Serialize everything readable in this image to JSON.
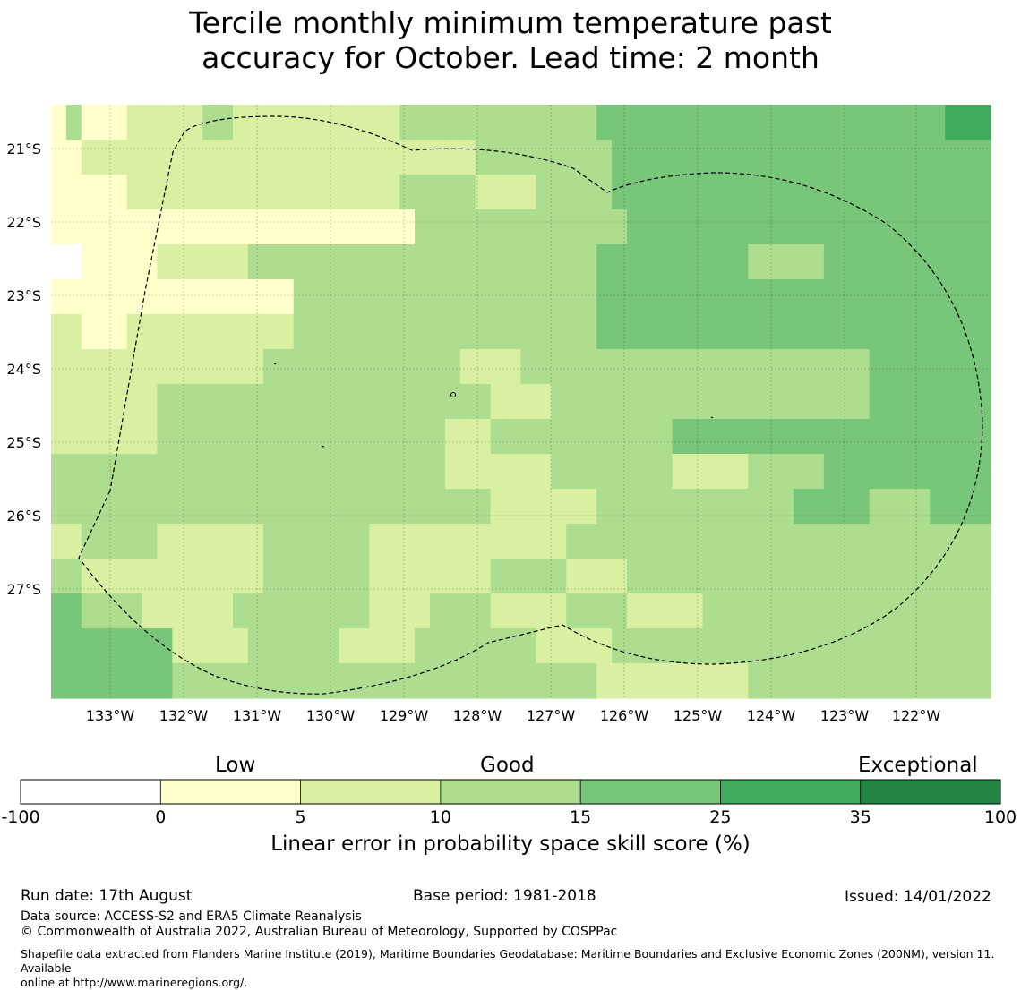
{
  "title": {
    "line1": "Tercile monthly minimum temperature past",
    "line2": "accuracy for October. Lead time: 2 month"
  },
  "map": {
    "lon_labels": [
      "133°W",
      "132°W",
      "131°W",
      "130°W",
      "129°W",
      "128°W",
      "127°W",
      "126°W",
      "125°W",
      "124°W",
      "123°W",
      "122°W"
    ],
    "lat_labels": [
      "21°S",
      "22°S",
      "23°S",
      "24°S",
      "25°S",
      "26°S",
      "27°S"
    ],
    "grid": [
      [
        0,
        2,
        0,
        0,
        0,
        1,
        1,
        1,
        1,
        1,
        2,
        2,
        1,
        1,
        1,
        1,
        1,
        1,
        1,
        1,
        1,
        1,
        1,
        2,
        2,
        2,
        2,
        2,
        2,
        2,
        2,
        2,
        2,
        2,
        2,
        2,
        3,
        3,
        3,
        3,
        3,
        3,
        3,
        3,
        3,
        3,
        3,
        3,
        3,
        3,
        3,
        3,
        3,
        3,
        3,
        3,
        3,
        3,
        3,
        4,
        4,
        4
      ],
      [
        0,
        0,
        1,
        1,
        1,
        1,
        1,
        1,
        1,
        1,
        1,
        1,
        1,
        1,
        1,
        1,
        1,
        1,
        1,
        1,
        1,
        1,
        1,
        1,
        1,
        1,
        1,
        1,
        2,
        2,
        2,
        2,
        2,
        2,
        2,
        2,
        2,
        3,
        3,
        3,
        3,
        3,
        3,
        3,
        3,
        3,
        3,
        3,
        3,
        3,
        3,
        3,
        3,
        3,
        3,
        3,
        3,
        3,
        3,
        3,
        3,
        3
      ],
      [
        0,
        0,
        0,
        0,
        0,
        1,
        1,
        1,
        1,
        1,
        1,
        1,
        1,
        1,
        1,
        1,
        1,
        1,
        1,
        1,
        1,
        1,
        1,
        2,
        2,
        2,
        2,
        2,
        1,
        1,
        1,
        1,
        2,
        2,
        2,
        2,
        2,
        3,
        3,
        3,
        3,
        3,
        3,
        3,
        3,
        3,
        3,
        3,
        3,
        3,
        3,
        3,
        3,
        3,
        3,
        3,
        3,
        3,
        3,
        3,
        3,
        3
      ],
      [
        0,
        0,
        0,
        0,
        0,
        0,
        0,
        0,
        0,
        0,
        0,
        0,
        0,
        0,
        0,
        0,
        0,
        0,
        0,
        0,
        0,
        0,
        0,
        0,
        2,
        2,
        2,
        2,
        2,
        2,
        2,
        2,
        2,
        2,
        2,
        2,
        2,
        2,
        3,
        3,
        3,
        3,
        3,
        3,
        3,
        3,
        3,
        3,
        3,
        3,
        3,
        3,
        3,
        3,
        3,
        3,
        3,
        3,
        3,
        3,
        3,
        3
      ],
      [
        -1,
        -1,
        0,
        0,
        0,
        0,
        0,
        1,
        1,
        1,
        1,
        1,
        1,
        2,
        2,
        2,
        2,
        2,
        2,
        2,
        2,
        2,
        2,
        2,
        2,
        2,
        2,
        2,
        2,
        2,
        2,
        2,
        2,
        2,
        2,
        2,
        3,
        3,
        3,
        3,
        3,
        3,
        3,
        3,
        3,
        3,
        2,
        2,
        2,
        2,
        2,
        3,
        3,
        3,
        3,
        3,
        3,
        3,
        3,
        3,
        3,
        3
      ],
      [
        0,
        0,
        0,
        0,
        0,
        0,
        0,
        0,
        0,
        0,
        0,
        0,
        0,
        0,
        0,
        0,
        2,
        2,
        2,
        2,
        2,
        2,
        2,
        2,
        2,
        2,
        2,
        2,
        2,
        2,
        2,
        2,
        2,
        2,
        2,
        2,
        3,
        3,
        3,
        3,
        3,
        3,
        3,
        3,
        3,
        3,
        3,
        3,
        3,
        3,
        3,
        3,
        3,
        3,
        3,
        3,
        3,
        3,
        3,
        3,
        3,
        3
      ],
      [
        1,
        1,
        0,
        0,
        0,
        1,
        1,
        1,
        1,
        1,
        1,
        1,
        1,
        1,
        1,
        1,
        2,
        2,
        2,
        2,
        2,
        2,
        2,
        2,
        2,
        2,
        2,
        2,
        2,
        2,
        2,
        2,
        2,
        2,
        2,
        2,
        3,
        3,
        3,
        3,
        3,
        3,
        3,
        3,
        3,
        3,
        3,
        3,
        3,
        3,
        3,
        3,
        3,
        3,
        3,
        3,
        3,
        3,
        3,
        3,
        3,
        3
      ],
      [
        1,
        1,
        1,
        1,
        1,
        1,
        1,
        1,
        1,
        1,
        1,
        1,
        1,
        1,
        2,
        2,
        2,
        2,
        2,
        2,
        2,
        2,
        2,
        2,
        2,
        2,
        2,
        1,
        1,
        1,
        1,
        2,
        2,
        2,
        2,
        2,
        2,
        2,
        2,
        2,
        2,
        2,
        2,
        2,
        2,
        2,
        2,
        2,
        2,
        2,
        2,
        2,
        2,
        2,
        3,
        3,
        3,
        3,
        3,
        3,
        3,
        3
      ],
      [
        1,
        1,
        1,
        1,
        1,
        1,
        1,
        2,
        2,
        2,
        2,
        2,
        2,
        2,
        2,
        2,
        2,
        2,
        2,
        2,
        2,
        2,
        2,
        2,
        2,
        2,
        2,
        2,
        2,
        1,
        1,
        1,
        1,
        2,
        2,
        2,
        2,
        2,
        2,
        2,
        2,
        2,
        2,
        2,
        2,
        2,
        2,
        2,
        2,
        2,
        2,
        2,
        2,
        2,
        3,
        3,
        3,
        3,
        3,
        3,
        3,
        3
      ],
      [
        1,
        1,
        1,
        1,
        1,
        1,
        1,
        2,
        2,
        2,
        2,
        2,
        2,
        2,
        2,
        2,
        2,
        2,
        2,
        2,
        2,
        2,
        2,
        2,
        2,
        2,
        1,
        1,
        1,
        2,
        2,
        2,
        2,
        2,
        2,
        2,
        2,
        2,
        2,
        2,
        2,
        3,
        3,
        3,
        3,
        3,
        3,
        3,
        3,
        3,
        3,
        3,
        3,
        3,
        3,
        3,
        3,
        3,
        3,
        3,
        3,
        3
      ],
      [
        2,
        2,
        2,
        2,
        2,
        2,
        2,
        2,
        2,
        2,
        2,
        2,
        2,
        2,
        2,
        2,
        2,
        2,
        2,
        2,
        2,
        2,
        2,
        2,
        2,
        2,
        1,
        1,
        1,
        1,
        1,
        1,
        1,
        2,
        2,
        2,
        2,
        2,
        2,
        2,
        2,
        1,
        1,
        1,
        1,
        1,
        2,
        2,
        2,
        2,
        2,
        3,
        3,
        3,
        3,
        3,
        3,
        3,
        3,
        3,
        3,
        3
      ],
      [
        2,
        2,
        2,
        2,
        2,
        2,
        2,
        2,
        2,
        2,
        2,
        2,
        2,
        2,
        2,
        2,
        2,
        2,
        2,
        2,
        2,
        2,
        2,
        2,
        2,
        2,
        2,
        2,
        2,
        1,
        1,
        1,
        1,
        1,
        1,
        1,
        2,
        2,
        2,
        2,
        2,
        2,
        2,
        2,
        2,
        2,
        2,
        2,
        2,
        3,
        3,
        3,
        3,
        3,
        2,
        2,
        2,
        2,
        3,
        3,
        3,
        3
      ],
      [
        1,
        1,
        2,
        2,
        2,
        2,
        2,
        1,
        1,
        1,
        1,
        1,
        1,
        1,
        2,
        2,
        2,
        2,
        2,
        2,
        2,
        1,
        1,
        1,
        1,
        1,
        1,
        1,
        1,
        1,
        1,
        1,
        1,
        1,
        2,
        2,
        2,
        2,
        2,
        2,
        2,
        2,
        2,
        2,
        2,
        2,
        2,
        2,
        2,
        2,
        2,
        2,
        2,
        2,
        2,
        2,
        2,
        2,
        2,
        2,
        2,
        2
      ],
      [
        2,
        2,
        1,
        1,
        1,
        1,
        1,
        1,
        1,
        1,
        1,
        1,
        1,
        1,
        2,
        2,
        2,
        2,
        2,
        2,
        2,
        1,
        1,
        1,
        1,
        1,
        1,
        1,
        1,
        2,
        2,
        2,
        2,
        2,
        1,
        1,
        1,
        1,
        2,
        2,
        2,
        2,
        2,
        2,
        2,
        2,
        2,
        2,
        2,
        2,
        2,
        2,
        2,
        2,
        2,
        2,
        2,
        2,
        2,
        2,
        2,
        2
      ],
      [
        3,
        3,
        2,
        2,
        2,
        2,
        1,
        1,
        1,
        1,
        1,
        1,
        2,
        2,
        2,
        2,
        2,
        2,
        2,
        2,
        2,
        1,
        1,
        1,
        1,
        2,
        2,
        2,
        2,
        1,
        1,
        1,
        1,
        1,
        2,
        2,
        2,
        2,
        1,
        1,
        1,
        1,
        1,
        2,
        2,
        2,
        2,
        2,
        2,
        2,
        2,
        2,
        2,
        2,
        2,
        2,
        2,
        2,
        2,
        2,
        2,
        2
      ],
      [
        3,
        3,
        3,
        3,
        3,
        3,
        3,
        3,
        1,
        1,
        1,
        1,
        1,
        2,
        2,
        2,
        2,
        2,
        2,
        1,
        1,
        1,
        1,
        1,
        2,
        2,
        2,
        2,
        2,
        2,
        2,
        2,
        1,
        1,
        1,
        1,
        1,
        2,
        2,
        2,
        2,
        2,
        2,
        2,
        2,
        2,
        2,
        2,
        2,
        2,
        2,
        2,
        2,
        2,
        2,
        2,
        2,
        2,
        2,
        2,
        2,
        2
      ],
      [
        3,
        3,
        3,
        3,
        3,
        3,
        3,
        3,
        2,
        2,
        2,
        2,
        2,
        2,
        2,
        2,
        2,
        2,
        2,
        2,
        2,
        2,
        2,
        2,
        2,
        2,
        2,
        2,
        2,
        2,
        2,
        2,
        2,
        2,
        2,
        2,
        1,
        1,
        1,
        1,
        1,
        1,
        1,
        1,
        1,
        1,
        2,
        2,
        2,
        2,
        2,
        2,
        2,
        2,
        2,
        2,
        2,
        2,
        2,
        2,
        2,
        2
      ]
    ],
    "level_colors": {
      "-1": "#ffffff",
      "0": "#ffffcc",
      "1": "#d9f0a3",
      "2": "#addd8e",
      "3": "#78c679",
      "4": "#41ab5d"
    },
    "eez_boundary_color": "#000000"
  },
  "colorbar": {
    "category_labels": [
      "Low",
      "Good",
      "Exceptional"
    ],
    "tick_labels": [
      "-100",
      "0",
      "5",
      "10",
      "15",
      "25",
      "35",
      "100"
    ],
    "colors": [
      "#ffffff",
      "#ffffcc",
      "#d9f0a3",
      "#addd8e",
      "#78c679",
      "#41ab5d",
      "#238443"
    ],
    "label": "Linear error in probability space skill score (%)"
  },
  "footer": {
    "run_date": "Run date: 17th August",
    "base_period": "Base period: 1981-2018",
    "issued": "Issued: 14/01/2022",
    "data_source": "Data source: ACCESS-S2 and ERA5 Climate Reanalysis",
    "copyright": "© Commonwealth of Australia 2022, Australian Bureau of Meteorology, Supported by COSPPac",
    "shapefile_line1": "Shapefile data extracted from Flanders Marine Institute (2019), Maritime Boundaries Geodatabase: Maritime Boundaries and Exclusive Economic Zones (200NM), version 11. Available",
    "shapefile_line2": "online at http://www.marineregions.org/."
  }
}
